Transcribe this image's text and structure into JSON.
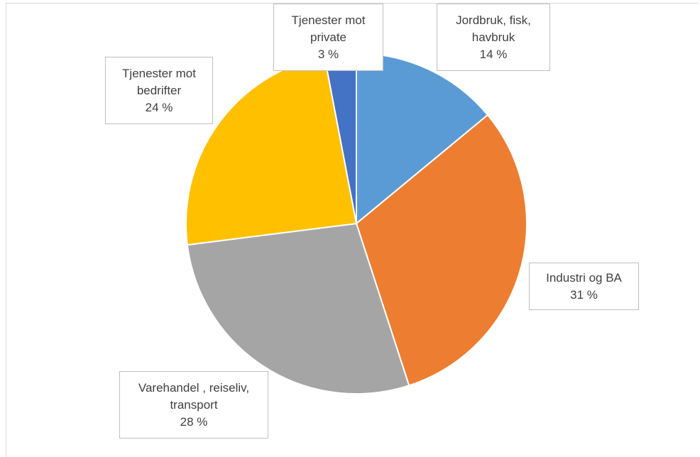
{
  "chart_data": {
    "type": "pie",
    "categories": [
      "Jordbruk, fisk, havbruk",
      "Industri og BA",
      "Varehandel , reiseliv, transport",
      "Tjenester mot bedrifter",
      "Tjenester mot private"
    ],
    "values": [
      14,
      31,
      28,
      24,
      3
    ],
    "value_labels": [
      "14 %",
      "31 %",
      "28 %",
      "24 %",
      "3 %"
    ],
    "colors": [
      "#5b9bd5",
      "#ed7d31",
      "#a5a5a5",
      "#ffc000",
      "#4472c4"
    ]
  }
}
